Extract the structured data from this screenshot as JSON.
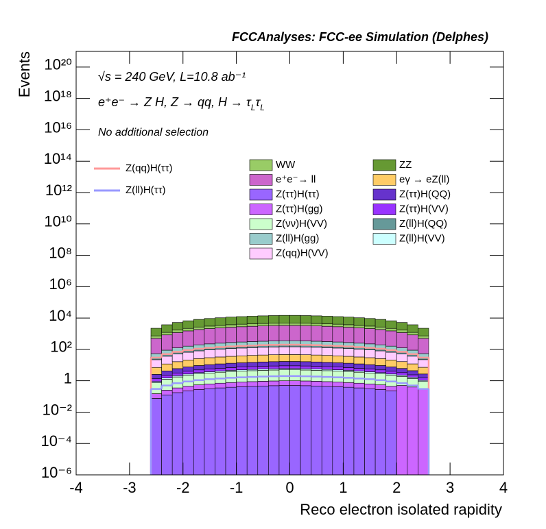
{
  "chart_data": {
    "type": "stacked_histogram",
    "title": "FCCAnalyses: FCC-ee Simulation (Delphes)",
    "energy_label": "√s = 240 GeV, L=10.8 ab⁻¹",
    "process": [
      {
        "text": "e⁺e⁻ → Z H, Z  → qq, H  → τ"
      },
      {
        "text": "L",
        "sub": true
      },
      {
        "text": "τ"
      },
      {
        "text": "L",
        "sub": true
      }
    ],
    "selection": "No additional selection",
    "xlabel": "Reco electron isolated rapidity",
    "ylabel": "Events",
    "xlim": [
      -4,
      4
    ],
    "xticks": [
      -4,
      -3,
      -2,
      -1,
      0,
      1,
      2,
      3,
      4
    ],
    "ylim": [
      1e-06,
      1e+21
    ],
    "log_y": true,
    "yticks": [
      {
        "value": 1e-06,
        "label": "10⁻⁶"
      },
      {
        "value": 0.0001,
        "label": "10⁻⁴"
      },
      {
        "value": 0.01,
        "label": "10⁻²"
      },
      1,
      {
        "value": 100,
        "label": "10²"
      },
      {
        "value": 10000.0,
        "label": "10⁴"
      },
      {
        "value": 1000000.0,
        "label": "10⁶"
      },
      {
        "value": 100000000.0,
        "label": "10⁸"
      },
      {
        "value": 10000000000.0,
        "label": "10¹⁰"
      },
      {
        "value": 1000000000000.0,
        "label": "10¹²"
      },
      {
        "value": 100000000000000.0,
        "label": "10¹⁴"
      },
      {
        "value": 1e+16,
        "label": "10¹⁶"
      },
      {
        "value": 1e+18,
        "label": "10¹⁸"
      },
      {
        "value": 1e+20,
        "label": "10²⁰"
      }
    ],
    "bins": [
      -2.6,
      -2.4,
      -2.2,
      -2,
      -1.8,
      -1.6,
      -1.4,
      -1.2,
      -1,
      -0.8,
      -0.6,
      -0.4,
      -0.2,
      0,
      0.2,
      0.4,
      0.6,
      0.8,
      1,
      1.2,
      1.4,
      1.6,
      1.8,
      2,
      2.2,
      2.4,
      2.6
    ],
    "series": [
      {
        "name": "WW",
        "color": "#99cc66",
        "values": [
          225,
          375,
          525,
          675,
          825,
          945,
          1050,
          1155,
          1245,
          1320,
          1395,
          1455,
          1500,
          1500,
          1455,
          1395,
          1320,
          1245,
          1155,
          1050,
          945,
          825,
          675,
          525,
          375,
          225
        ]
      },
      {
        "name": "ZZ",
        "color": "#669933",
        "values": [
          1500,
          2500,
          3500,
          4500,
          5500,
          6300,
          7000,
          7700,
          8300,
          8800,
          9300,
          9700,
          10000,
          10000,
          9700,
          9300,
          8800,
          8300,
          7700,
          7000,
          6300,
          5500,
          4500,
          3500,
          2500,
          1500
        ]
      },
      {
        "name": "e⁺e⁻→ ll",
        "color": "#cc66cc",
        "values": [
          450,
          750,
          1050,
          1350,
          1650,
          1890,
          2100,
          2310,
          2490,
          2640,
          2790,
          2910,
          3000,
          3000,
          2910,
          2790,
          2640,
          2490,
          2310,
          2100,
          1890,
          1650,
          1350,
          1050,
          750,
          450
        ]
      },
      {
        "name": "eγ → eZ(ll)",
        "color": "#ffcc66",
        "values": [
          4.5,
          7.5,
          10.5,
          13.5,
          16.5,
          18.9,
          21,
          23.1,
          24.9,
          26.4,
          27.9,
          29.1,
          30,
          30,
          29.1,
          27.9,
          26.4,
          24.9,
          23.1,
          21,
          18.9,
          16.5,
          13.5,
          10.5,
          7.5,
          4.5
        ]
      },
      {
        "name": "Z(ττ)H(ττ)",
        "color": "#9966ff",
        "values": [
          0.075,
          0.125,
          0.175,
          0.225,
          0.275,
          0.315,
          0.35,
          0.385,
          0.415,
          0.44,
          0.465,
          0.485,
          0.5,
          0.5,
          0.485,
          0.465,
          0.44,
          0.415,
          0.385,
          0.35,
          0.315,
          0.275,
          0.225,
          0,
          0,
          0
        ]
      },
      {
        "name": "Z(ττ)H(QQ)",
        "color": "#6633cc",
        "values": [
          1.2,
          2,
          2.8,
          3.6,
          4.4,
          5.04,
          5.6,
          6.16,
          6.64,
          7.04,
          7.44,
          7.76,
          8,
          8,
          7.76,
          7.44,
          7.04,
          6.64,
          6.16,
          5.6,
          5.04,
          4.4,
          3.6,
          2.8,
          2,
          1.2
        ]
      },
      {
        "name": "Z(ττ)H(gg)",
        "color": "#cc66ff",
        "values": [
          0.075,
          0.125,
          0.175,
          0.225,
          0.275,
          0.315,
          0.35,
          0.385,
          0.415,
          0.44,
          0.465,
          0.485,
          0.5,
          0.5,
          0.485,
          0.465,
          0.44,
          0.415,
          0.385,
          0.35,
          0.315,
          0.275,
          0.225,
          0.5,
          0.4,
          0.3
        ]
      },
      {
        "name": "Z(ττ)H(VV)",
        "color": "#9933ff",
        "values": [
          0.45,
          0.75,
          1.05,
          1.35,
          1.65,
          1.89,
          2.1,
          2.31,
          2.49,
          2.64,
          2.79,
          2.91,
          3,
          3,
          2.91,
          2.79,
          2.64,
          2.49,
          2.31,
          2.1,
          1.89,
          1.65,
          1.35,
          1.05,
          0.75,
          0.45
        ]
      },
      {
        "name": "Z(νν)H(VV)",
        "color": "#ccffcc",
        "values": [
          0.6,
          1,
          1.4,
          1.8,
          2.2,
          2.52,
          2.8,
          3.08,
          3.32,
          3.52,
          3.72,
          3.88,
          4,
          4,
          3.88,
          3.72,
          3.52,
          3.32,
          3.08,
          2.8,
          2.52,
          2.2,
          1.8,
          1.4,
          1,
          0.6
        ]
      },
      {
        "name": "Z(ll)H(QQ)",
        "color": "#669999",
        "values": [
          9,
          15,
          21,
          27,
          33,
          37.8,
          42,
          46.2,
          49.8,
          52.8,
          55.8,
          58.2,
          60,
          60,
          58.2,
          55.8,
          52.8,
          49.8,
          46.2,
          42,
          37.8,
          33,
          27,
          21,
          15,
          9
        ]
      },
      {
        "name": "Z(ll)H(gg)",
        "color": "#99cccc",
        "values": [
          22.5,
          37.5,
          52.5,
          67.5,
          82.5,
          94.5,
          105,
          115.5,
          124.5,
          132,
          139.5,
          145.5,
          150,
          150,
          145.5,
          139.5,
          132,
          124.5,
          115.5,
          105,
          94.5,
          82.5,
          67.5,
          52.5,
          37.5,
          22.5
        ]
      },
      {
        "name": "Z(ll)H(VV)",
        "color": "#ccffff",
        "values": [
          0.15,
          0.25,
          0.35,
          0.45,
          0.55,
          0.63,
          0.7,
          0.77,
          0.83,
          0.88,
          0.93,
          0.97,
          1,
          1,
          0.97,
          0.93,
          0.88,
          0.83,
          0.77,
          0.7,
          0.63,
          0.55,
          0.45,
          0.35,
          0.25,
          0.15
        ]
      },
      {
        "name": "Z(qq)H(VV)",
        "color": "#ffccff",
        "values": [
          15,
          25,
          35,
          45,
          55,
          63,
          70,
          77,
          83,
          88,
          93,
          97,
          100,
          100,
          97,
          93,
          88,
          83,
          77,
          70,
          63,
          55,
          45,
          35,
          25,
          15
        ]
      }
    ],
    "line_series": [
      {
        "name": "Z(qq)H(ττ)",
        "color": "#ff9999",
        "values": [
          30,
          50,
          70,
          90,
          110,
          126,
          140,
          154,
          166,
          176,
          186,
          194,
          200,
          200,
          194,
          186,
          176,
          166,
          154,
          140,
          126,
          110,
          90,
          70,
          50,
          30
        ]
      },
      {
        "name": "Z(ll)H(ττ)",
        "color": "#9999ff",
        "values": [
          0.3,
          0.5,
          0.7,
          0.9,
          1.1,
          1.26,
          1.4,
          1.54,
          1.66,
          1.76,
          1.86,
          1.94,
          2,
          2,
          1.94,
          1.86,
          1.76,
          1.66,
          1.54,
          1.4,
          1.26,
          1.1,
          0.9,
          0.7,
          0.5,
          0.3
        ]
      }
    ]
  }
}
